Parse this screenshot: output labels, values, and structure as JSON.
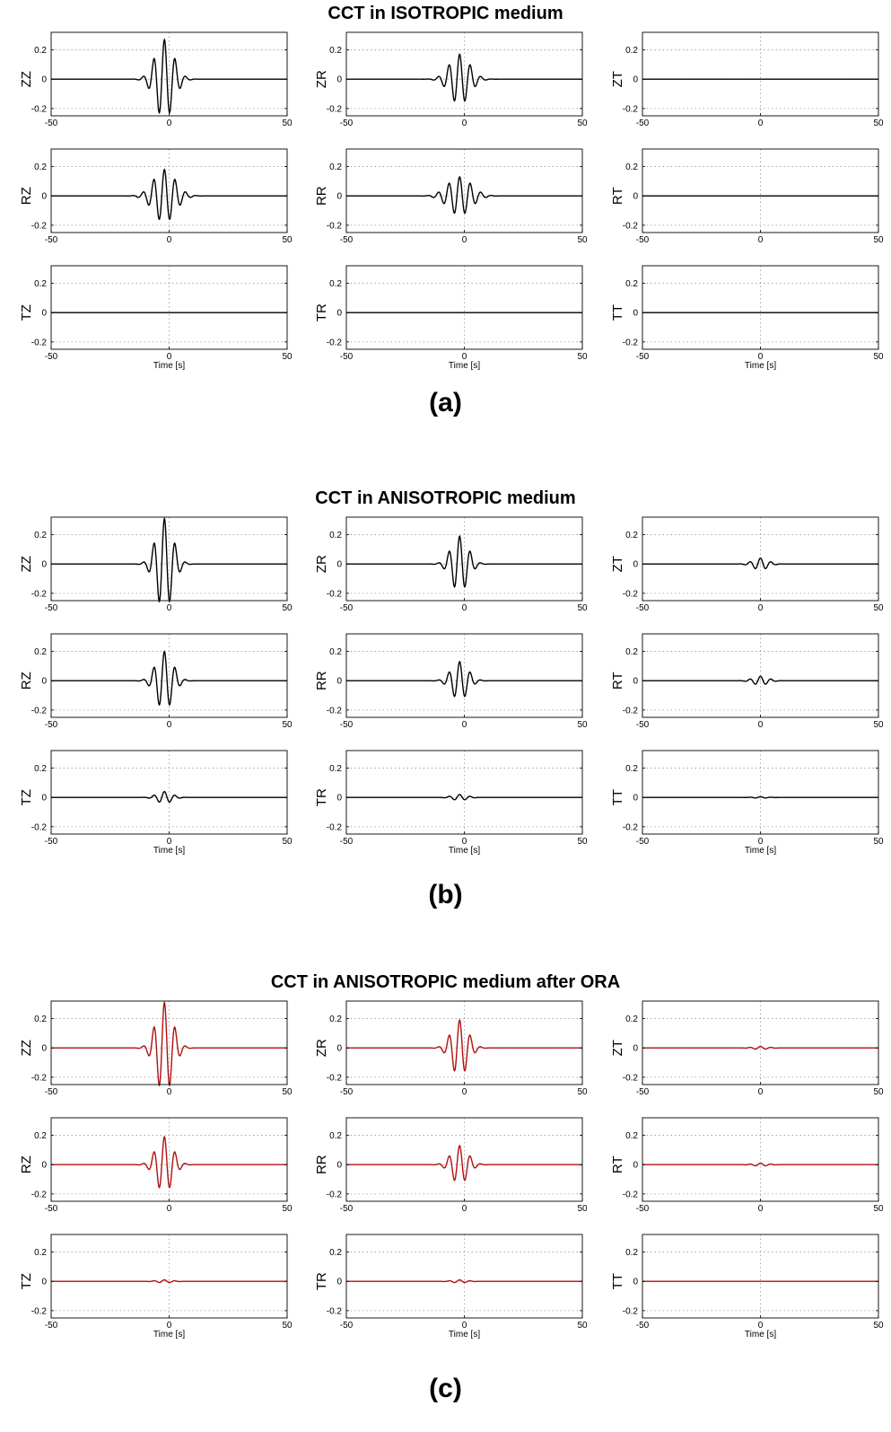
{
  "panels": [
    {
      "title": "CCT in ISOTROPIC medium",
      "label": "(a)"
    },
    {
      "title": "CCT in ANISOTROPIC medium",
      "label": "(b)"
    },
    {
      "title": "CCT in ANISOTROPIC medium after ORA",
      "label": "(c)"
    }
  ],
  "colors": {
    "black_trace": "#000000",
    "red_trace": "#b01010",
    "grid": "#999999"
  },
  "chart_data": [
    {
      "type": "line",
      "title": "CCT in ISOTROPIC medium",
      "xlabel": "Time [s]",
      "xlim": [
        -50,
        50
      ],
      "ylim": [
        -0.25,
        0.32
      ],
      "xticks": [
        "-50",
        "0",
        "50"
      ],
      "yticks": [
        "0.2",
        "0",
        "-0.2"
      ],
      "grid": true,
      "subplots": [
        {
          "name": "ZZ",
          "color": "#000000",
          "packet": {
            "amplitude": 0.27,
            "center": -2,
            "period": 4.5,
            "width": 5.5
          }
        },
        {
          "name": "ZR",
          "color": "#000000",
          "packet": {
            "amplitude": 0.17,
            "center": -2,
            "period": 4.5,
            "width": 6.0
          }
        },
        {
          "name": "ZT",
          "color": "#000000",
          "packet": {
            "amplitude": 0.0,
            "center": 0,
            "period": 4.5,
            "width": 5.0
          }
        },
        {
          "name": "RZ",
          "color": "#000000",
          "packet": {
            "amplitude": 0.18,
            "center": -2,
            "period": 4.5,
            "width": 6.5
          }
        },
        {
          "name": "RR",
          "color": "#000000",
          "packet": {
            "amplitude": 0.13,
            "center": -2,
            "period": 4.5,
            "width": 7.0
          }
        },
        {
          "name": "RT",
          "color": "#000000",
          "packet": {
            "amplitude": 0.0,
            "center": 0,
            "period": 4.5,
            "width": 5.0
          }
        },
        {
          "name": "TZ",
          "color": "#000000",
          "packet": {
            "amplitude": 0.0,
            "center": 0,
            "period": 4.5,
            "width": 5.0
          }
        },
        {
          "name": "TR",
          "color": "#000000",
          "packet": {
            "amplitude": 0.0,
            "center": 0,
            "period": 4.5,
            "width": 5.0
          }
        },
        {
          "name": "TT",
          "color": "#000000",
          "packet": {
            "amplitude": 0.0,
            "center": 0,
            "period": 4.5,
            "width": 5.0
          }
        }
      ]
    },
    {
      "type": "line",
      "title": "CCT in ANISOTROPIC medium",
      "xlabel": "Time [s]",
      "xlim": [
        -50,
        50
      ],
      "ylim": [
        -0.25,
        0.32
      ],
      "xticks": [
        "-50",
        "0",
        "50"
      ],
      "yticks": [
        "0.2",
        "0",
        "-0.2"
      ],
      "grid": true,
      "subplots": [
        {
          "name": "ZZ",
          "color": "#000000",
          "packet": {
            "amplitude": 0.31,
            "center": -2,
            "period": 4.5,
            "width": 5.0
          }
        },
        {
          "name": "ZR",
          "color": "#000000",
          "packet": {
            "amplitude": 0.19,
            "center": -2,
            "period": 4.5,
            "width": 5.0
          }
        },
        {
          "name": "ZT",
          "color": "#000000",
          "packet": {
            "amplitude": 0.04,
            "center": 0,
            "period": 4.5,
            "width": 4.5
          }
        },
        {
          "name": "RZ",
          "color": "#000000",
          "packet": {
            "amplitude": 0.2,
            "center": -2,
            "period": 4.5,
            "width": 5.0
          }
        },
        {
          "name": "RR",
          "color": "#000000",
          "packet": {
            "amplitude": 0.13,
            "center": -2,
            "period": 4.5,
            "width": 5.0
          }
        },
        {
          "name": "RT",
          "color": "#000000",
          "packet": {
            "amplitude": 0.03,
            "center": 0,
            "period": 4.5,
            "width": 4.5
          }
        },
        {
          "name": "TZ",
          "color": "#000000",
          "packet": {
            "amplitude": 0.04,
            "center": -2,
            "period": 4.5,
            "width": 4.5
          }
        },
        {
          "name": "TR",
          "color": "#000000",
          "packet": {
            "amplitude": 0.02,
            "center": -2,
            "period": 4.5,
            "width": 4.5
          }
        },
        {
          "name": "TT",
          "color": "#000000",
          "packet": {
            "amplitude": 0.005,
            "center": 0,
            "period": 4.5,
            "width": 4.0
          }
        }
      ]
    },
    {
      "type": "line",
      "title": "CCT in ANISOTROPIC medium after ORA",
      "xlabel": "Time [s]",
      "xlim": [
        -50,
        50
      ],
      "ylim": [
        -0.25,
        0.32
      ],
      "xticks": [
        "-50",
        "0",
        "50"
      ],
      "yticks": [
        "0.2",
        "0",
        "-0.2"
      ],
      "grid": true,
      "subplots": [
        {
          "name": "ZZ",
          "color": "#b01010",
          "packet": {
            "amplitude": 0.31,
            "center": -2,
            "period": 4.5,
            "width": 5.0
          }
        },
        {
          "name": "ZR",
          "color": "#b01010",
          "packet": {
            "amplitude": 0.19,
            "center": -2,
            "period": 4.5,
            "width": 5.0
          }
        },
        {
          "name": "ZT",
          "color": "#b01010",
          "packet": {
            "amplitude": 0.01,
            "center": 0,
            "period": 4.5,
            "width": 4.5
          }
        },
        {
          "name": "RZ",
          "color": "#b01010",
          "packet": {
            "amplitude": 0.19,
            "center": -2,
            "period": 4.5,
            "width": 5.0
          }
        },
        {
          "name": "RR",
          "color": "#b01010",
          "packet": {
            "amplitude": 0.13,
            "center": -2,
            "period": 4.5,
            "width": 5.0
          }
        },
        {
          "name": "RT",
          "color": "#b01010",
          "packet": {
            "amplitude": 0.01,
            "center": 0,
            "period": 4.5,
            "width": 4.5
          }
        },
        {
          "name": "TZ",
          "color": "#b01010",
          "packet": {
            "amplitude": 0.01,
            "center": -2,
            "period": 4.5,
            "width": 4.5
          }
        },
        {
          "name": "TR",
          "color": "#b01010",
          "packet": {
            "amplitude": 0.01,
            "center": -2,
            "period": 4.5,
            "width": 4.5
          }
        },
        {
          "name": "TT",
          "color": "#b01010",
          "packet": {
            "amplitude": 0.0,
            "center": 0,
            "period": 4.5,
            "width": 4.0
          }
        }
      ]
    }
  ]
}
